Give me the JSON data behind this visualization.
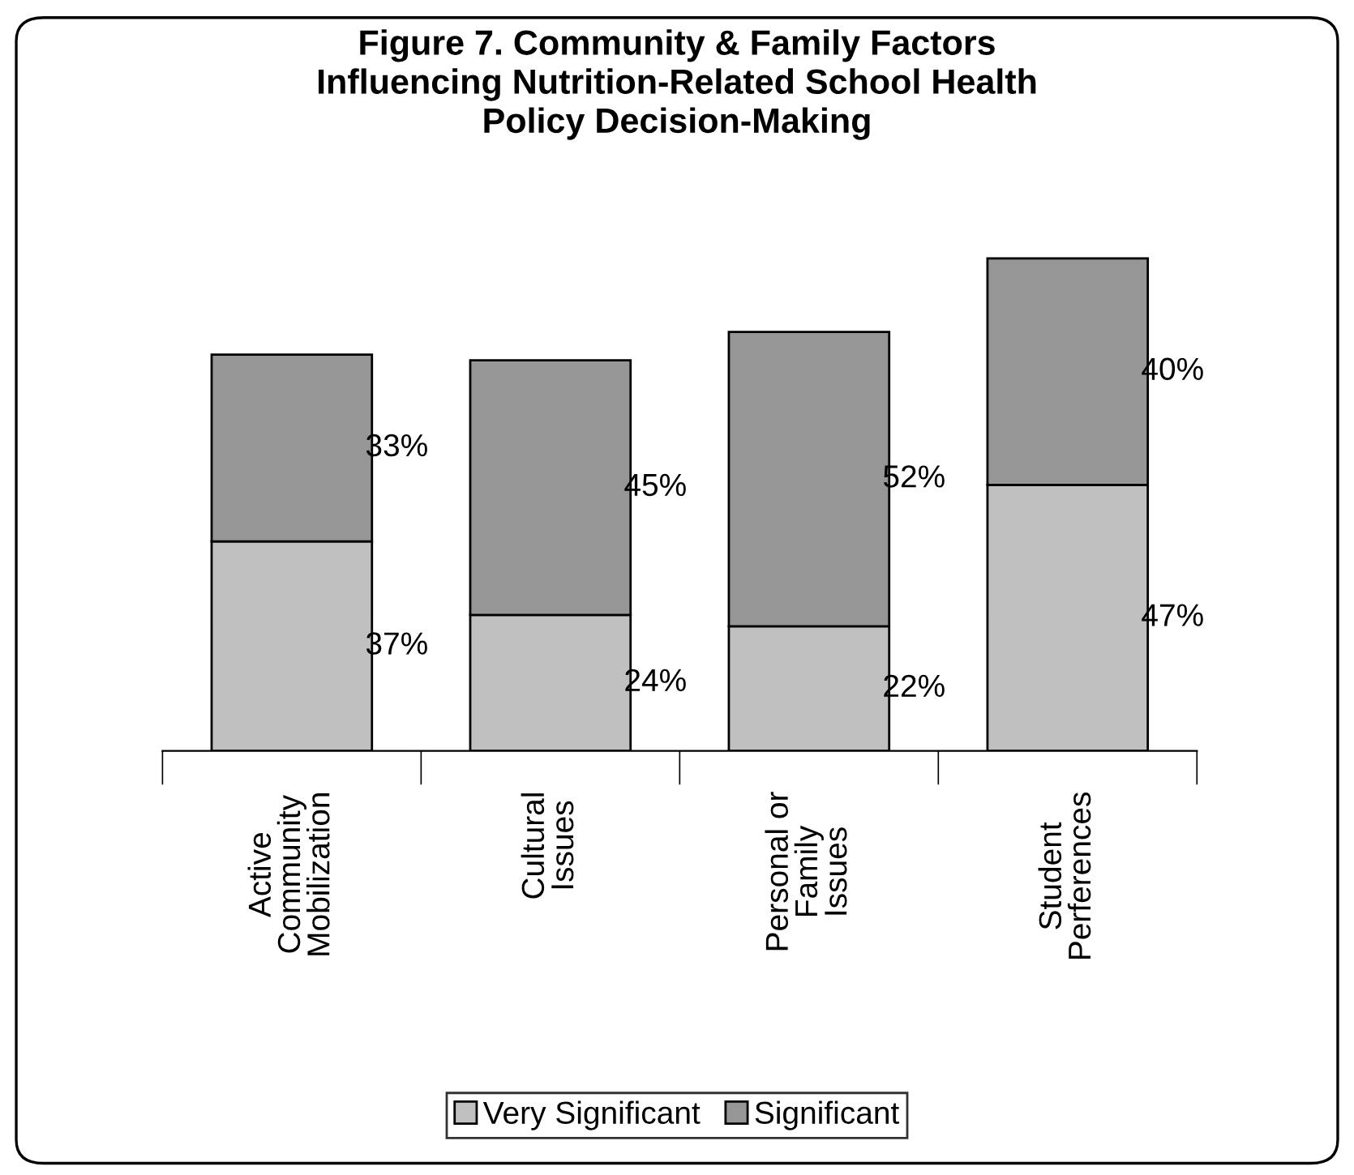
{
  "chart_data": {
    "type": "bar",
    "title": "Figure 7. Community & Family Factors\nInfluencing Nutrition-Related School Health\nPolicy Decision-Making",
    "categories": [
      "Active\nCommunity\nMobilization",
      "Cultural\nIssues",
      "Personal or\nFamily\nIssues",
      "Student\nPerferences"
    ],
    "stacked": true,
    "legend": "bottom",
    "series": [
      {
        "name": "Very Significant",
        "color": "#c0c0c0",
        "values": [
          37,
          24,
          22,
          47
        ],
        "value_labels": [
          "37%",
          "24%",
          "22%",
          "47%"
        ]
      },
      {
        "name": "Significant",
        "color": "#969696",
        "values": [
          33,
          45,
          52,
          40
        ],
        "value_labels": [
          "33%",
          "45%",
          "52%",
          "40%"
        ]
      }
    ]
  }
}
